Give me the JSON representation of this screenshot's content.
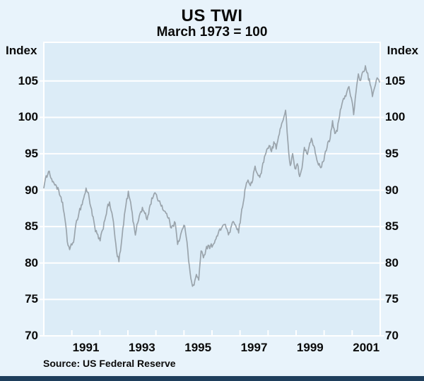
{
  "title": "US TWI",
  "subtitle": "March 1973 = 100",
  "axis_unit_left": "Index",
  "axis_unit_right": "Index",
  "source": "Source: US Federal Reserve",
  "colors": {
    "background": "#e8f3fb",
    "plot_background": "#dcecf7",
    "gridline": "#ffffff",
    "line": "#9aa4ac",
    "text": "#0a0a0a",
    "footer_bar": "#1e3e5c"
  },
  "chart_data": {
    "type": "line",
    "title": "US TWI",
    "subtitle": "March 1973 = 100",
    "xlabel": "",
    "ylabel": "Index",
    "grid": true,
    "legend_position": "none",
    "x_start_year": 1990,
    "x_end_year": 2002,
    "x_tick_labels": [
      "1991",
      "1993",
      "1995",
      "1997",
      "1999",
      "2001"
    ],
    "y_ticks": [
      70,
      75,
      80,
      85,
      90,
      95,
      100,
      105
    ],
    "ylim": [
      70,
      110.3
    ],
    "texture_noise": 0.35,
    "series": [
      {
        "name": "US TWI (March 1973 = 100)",
        "frequency": "monthly",
        "start": "1990-01",
        "end": "2001-12",
        "values": [
          90.3,
          91.8,
          92.7,
          91.8,
          91.0,
          90.8,
          90.2,
          89.0,
          88.3,
          86.0,
          83.0,
          81.9,
          82.5,
          83.5,
          85.8,
          87.0,
          87.9,
          88.9,
          90.2,
          89.5,
          87.8,
          86.2,
          84.3,
          83.8,
          83.0,
          84.5,
          86.0,
          87.5,
          88.2,
          87.0,
          84.5,
          81.5,
          80.2,
          82.5,
          85.5,
          88.0,
          89.7,
          88.5,
          85.8,
          84.0,
          85.5,
          86.8,
          87.5,
          86.8,
          86.0,
          87.5,
          88.8,
          89.6,
          89.2,
          88.6,
          88.0,
          87.3,
          86.8,
          86.3,
          85.0,
          85.3,
          85.5,
          82.5,
          83.5,
          84.5,
          85.2,
          83.0,
          79.5,
          77.2,
          76.9,
          78.4,
          77.8,
          81.5,
          80.9,
          81.8,
          82.5,
          82.2,
          82.6,
          83.0,
          83.8,
          84.5,
          85.0,
          85.4,
          84.5,
          84.0,
          85.0,
          85.7,
          84.8,
          84.2,
          86.5,
          88.5,
          90.5,
          91.5,
          90.5,
          91.5,
          93.2,
          92.2,
          91.8,
          93.0,
          94.5,
          95.5,
          96.3,
          95.2,
          96.6,
          95.8,
          97.2,
          98.8,
          99.8,
          100.9,
          96.5,
          93.4,
          95.0,
          92.9,
          93.5,
          92.0,
          93.0,
          95.8,
          94.9,
          95.8,
          97.2,
          96.2,
          94.8,
          93.6,
          92.9,
          94.0,
          95.2,
          96.6,
          97.2,
          99.6,
          97.6,
          98.2,
          100.2,
          101.9,
          102.6,
          103.4,
          104.2,
          102.8,
          100.4,
          103.3,
          105.9,
          105.1,
          106.3,
          106.9,
          105.9,
          104.5,
          103.0,
          104.0,
          105.6,
          104.9
        ]
      }
    ]
  }
}
